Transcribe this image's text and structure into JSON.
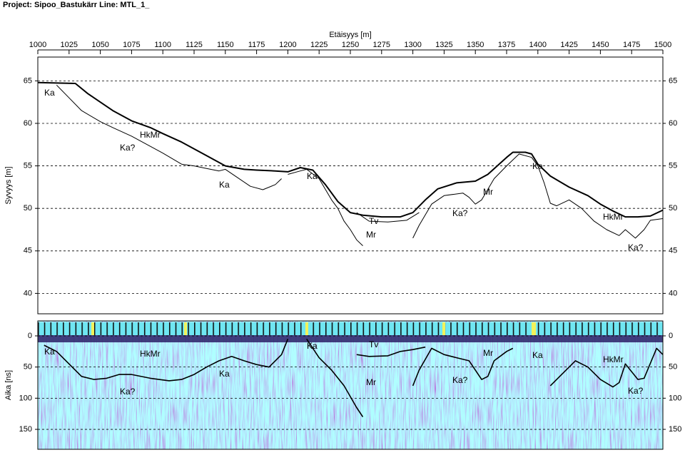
{
  "header": {
    "title": "Project: Sipoo_Bastukärr  Line: MTL_1_"
  },
  "chart_data": [
    {
      "type": "line",
      "xlabel": "Etäisyys [m]",
      "ylabel": "Syvyys [m]",
      "xlim": [
        1000,
        1500
      ],
      "xticks": [
        1000,
        1025,
        1050,
        1075,
        1100,
        1125,
        1150,
        1175,
        1200,
        1225,
        1250,
        1275,
        1300,
        1325,
        1350,
        1375,
        1400,
        1425,
        1450,
        1475,
        1500
      ],
      "ylim": [
        37.6,
        67.8
      ],
      "yticks": [
        40,
        45,
        50,
        55,
        60,
        65
      ],
      "grid": true,
      "series": [
        {
          "name": "HkMr",
          "color": "#000000",
          "line_width": 2,
          "x": [
            1000,
            1030,
            1040,
            1050,
            1060,
            1075,
            1090,
            1100,
            1115,
            1125,
            1135,
            1150,
            1165,
            1175,
            1190,
            1200,
            1210,
            1220,
            1230,
            1240,
            1250,
            1260,
            1275,
            1290,
            1300,
            1310,
            1320,
            1335,
            1350,
            1360,
            1375,
            1380,
            1390,
            1395,
            1400,
            1410,
            1425,
            1440,
            1450,
            1460,
            1470,
            1480,
            1490,
            1500
          ],
          "values": [
            64.8,
            64.7,
            63.5,
            62.5,
            61.5,
            60.3,
            59.5,
            58.8,
            57.8,
            57,
            56.2,
            55,
            54.6,
            54.5,
            54.4,
            54.3,
            54.8,
            54.5,
            52.8,
            50.8,
            49.5,
            49.2,
            49,
            49,
            49.5,
            51,
            52.3,
            53,
            53.2,
            54,
            56,
            56.6,
            56.6,
            56.4,
            55.2,
            53.8,
            52.5,
            51.5,
            50.5,
            49.7,
            49,
            49,
            49.1,
            49.8
          ]
        },
        {
          "name": "Ka",
          "color": "#000000",
          "line_width": 1,
          "x": [
            1015,
            1025,
            1035,
            1050,
            1060,
            1075,
            1090,
            1100,
            1115,
            1125,
            1135,
            1145,
            1150,
            1160,
            1170,
            1180,
            1190,
            1195,
            1198,
            1200,
            1210,
            1215,
            1225,
            1235,
            1240,
            1245,
            1250,
            1255,
            1260,
            1280,
            1300,
            1305,
            1315,
            1325,
            1340,
            1345,
            1350,
            1355,
            1365,
            1375,
            1385,
            1395,
            1400,
            1405,
            1410,
            1415,
            1425,
            1435,
            1445,
            1455,
            1465,
            1470,
            1478,
            1485,
            1490,
            1500
          ],
          "values": [
            64.5,
            63,
            61.5,
            60.2,
            59.5,
            58.5,
            57.3,
            56.5,
            55.2,
            55,
            54.7,
            54.4,
            54.6,
            53.6,
            52.6,
            52.2,
            52.8,
            53.5,
            null,
            54,
            54.4,
            54.6,
            53.5,
            51,
            50,
            48.5,
            47.5,
            46.3,
            45.6,
            null,
            46.5,
            48,
            50.5,
            51.5,
            51.8,
            51.3,
            50.5,
            51,
            53.5,
            55,
            56.4,
            56,
            55,
            53,
            50.6,
            50.3,
            51,
            50,
            48.5,
            47.5,
            46.8,
            47.5,
            46.5,
            47.5,
            48.6,
            48.8
          ]
        },
        {
          "name": "Tv",
          "color": "#000000",
          "line_width": 1,
          "x": [
            1255,
            1265,
            1280,
            1295,
            1305
          ],
          "values": [
            49.5,
            48.5,
            48.4,
            48.6,
            49.5
          ]
        }
      ],
      "annotations": [
        "Ka",
        "HkMr",
        "Ka?",
        "Ka",
        "Ka",
        "Tv",
        "Mr",
        "Mr",
        "Ka?",
        "Ka",
        "HkMr",
        "Ka?"
      ]
    },
    {
      "type": "line",
      "ylabel": "Aika [ns]",
      "xlim": [
        1000,
        1500
      ],
      "ylim": [
        -24,
        182
      ],
      "y_inverted": true,
      "yticks": [
        0,
        50,
        100,
        150
      ],
      "grid": true,
      "series": [
        {
          "name": "Ka",
          "color": "#000000",
          "line_width": 1.6,
          "x": [
            1005,
            1015,
            1025,
            1035,
            1045,
            1055,
            1065,
            1075,
            1090,
            1105,
            1115,
            1125,
            1135,
            1145,
            1155,
            1165,
            1175,
            1185,
            1195,
            1200,
            1207,
            1215,
            1225,
            1235,
            1245,
            1255,
            1260,
            1280,
            1300,
            1305,
            1315,
            1325,
            1335,
            1345,
            1355,
            1360,
            1365,
            1375,
            1380,
            1395,
            1410,
            1420,
            1430,
            1440,
            1450,
            1460,
            1465,
            1470,
            1480,
            1485,
            1495,
            1500
          ],
          "values": [
            15,
            25,
            45,
            65,
            70,
            68,
            62,
            62,
            68,
            72,
            70,
            62,
            50,
            40,
            33,
            40,
            46,
            50,
            30,
            5,
            null,
            5,
            35,
            55,
            80,
            115,
            130,
            null,
            80,
            55,
            20,
            30,
            35,
            40,
            70,
            65,
            40,
            25,
            20,
            null,
            80,
            60,
            40,
            50,
            70,
            82,
            75,
            45,
            70,
            68,
            20,
            30
          ]
        },
        {
          "name": "Tv",
          "color": "#000000",
          "line_width": 1.6,
          "x": [
            1255,
            1265,
            1280,
            1290,
            1300,
            1310
          ],
          "values": [
            30,
            33,
            32,
            25,
            22,
            18
          ]
        }
      ],
      "annotations": [
        "Ka",
        "HkMr",
        "Ka",
        "Ka?",
        "Ka",
        "Tv",
        "Mr",
        "Mr",
        "Ka?",
        "Ka",
        "HkMr",
        "Ka?"
      ]
    }
  ]
}
